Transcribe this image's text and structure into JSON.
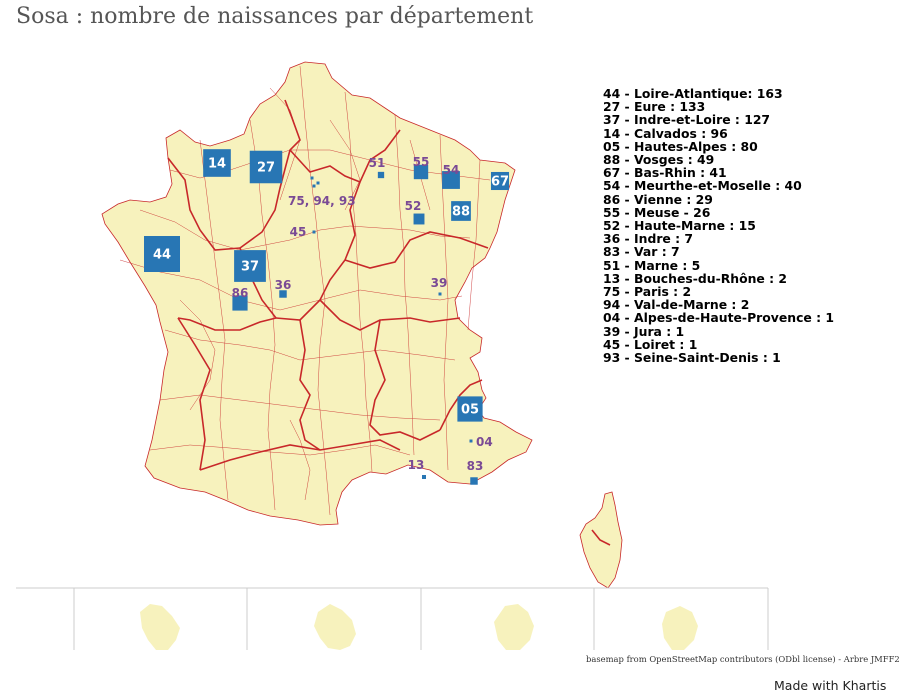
{
  "title": "Sosa : nombre de naissances par département",
  "colors": {
    "land": "#f7f2bd",
    "region_border": "#c8282a",
    "dept_border": "#c8282a",
    "symbol": "#2876b4",
    "symbol_label": "#ffffff",
    "small_label": "#7a4a95"
  },
  "legend": [
    {
      "code": "44",
      "name": "Loire-Atlantique",
      "sep": ": ",
      "value": 163
    },
    {
      "code": "27",
      "name": "Eure",
      "sep": " : ",
      "value": 133
    },
    {
      "code": "37",
      "name": "Indre-et-Loire",
      "sep": " : ",
      "value": 127
    },
    {
      "code": "14",
      "name": "Calvados",
      "sep": " : ",
      "value": 96
    },
    {
      "code": "05",
      "name": "Hautes-Alpes",
      "sep": " : ",
      "value": 80
    },
    {
      "code": "88",
      "name": "Vosges",
      "sep": " : ",
      "value": 49
    },
    {
      "code": "67",
      "name": "Bas-Rhin",
      "sep": " : ",
      "value": 41
    },
    {
      "code": "54",
      "name": "Meurthe-et-Moselle",
      "sep": " : ",
      "value": 40
    },
    {
      "code": "86",
      "name": "Vienne",
      "sep": " : ",
      "value": 29
    },
    {
      "code": "55",
      "name": "Meuse",
      "sep": " - ",
      "value": 26
    },
    {
      "code": "52",
      "name": "Haute-Marne",
      "sep": " : ",
      "value": 15
    },
    {
      "code": "36",
      "name": "Indre",
      "sep": " : ",
      "value": 7
    },
    {
      "code": "83",
      "name": "Var",
      "sep": " : ",
      "value": 7
    },
    {
      "code": "51",
      "name": "Marne",
      "sep": " : ",
      "value": 5
    },
    {
      "code": "13",
      "name": "Bouches-du-Rhône",
      "sep": " : ",
      "value": 2
    },
    {
      "code": "75",
      "name": "Paris",
      "sep": " : ",
      "value": 2
    },
    {
      "code": "94",
      "name": "Val-de-Marne",
      "sep": " : ",
      "value": 2
    },
    {
      "code": "04",
      "name": "Alpes-de-Haute-Provence",
      "sep": " : ",
      "value": 1
    },
    {
      "code": "39",
      "name": "Jura",
      "sep": " : ",
      "value": 1
    },
    {
      "code": "45",
      "name": "Loiret",
      "sep": " : ",
      "value": 1
    },
    {
      "code": "93",
      "name": "Seine-Saint-Denis",
      "sep": " : ",
      "value": 1
    }
  ],
  "symbols": [
    {
      "code": "44",
      "value": 163
    },
    {
      "code": "27",
      "value": 133
    },
    {
      "code": "37",
      "value": 127
    },
    {
      "code": "14",
      "value": 96
    },
    {
      "code": "05",
      "value": 80
    },
    {
      "code": "88",
      "value": 49
    },
    {
      "code": "67",
      "value": 41
    },
    {
      "code": "54",
      "value": 40
    },
    {
      "code": "86",
      "value": 29
    },
    {
      "code": "55",
      "value": 26
    },
    {
      "code": "52",
      "value": 15
    },
    {
      "code": "36",
      "value": 7
    },
    {
      "code": "83",
      "value": 7
    },
    {
      "code": "51",
      "value": 5
    },
    {
      "code": "13",
      "value": 2
    },
    {
      "code": "04",
      "value": 1
    },
    {
      "code": "39",
      "value": 1
    },
    {
      "code": "45",
      "value": 1
    }
  ],
  "paris_label": "75, 94, 93",
  "attribution": "basemap from OpenStreetMap contributors (ODbl license) - Arbre JMFF2",
  "made_with": "Made with Khartis"
}
